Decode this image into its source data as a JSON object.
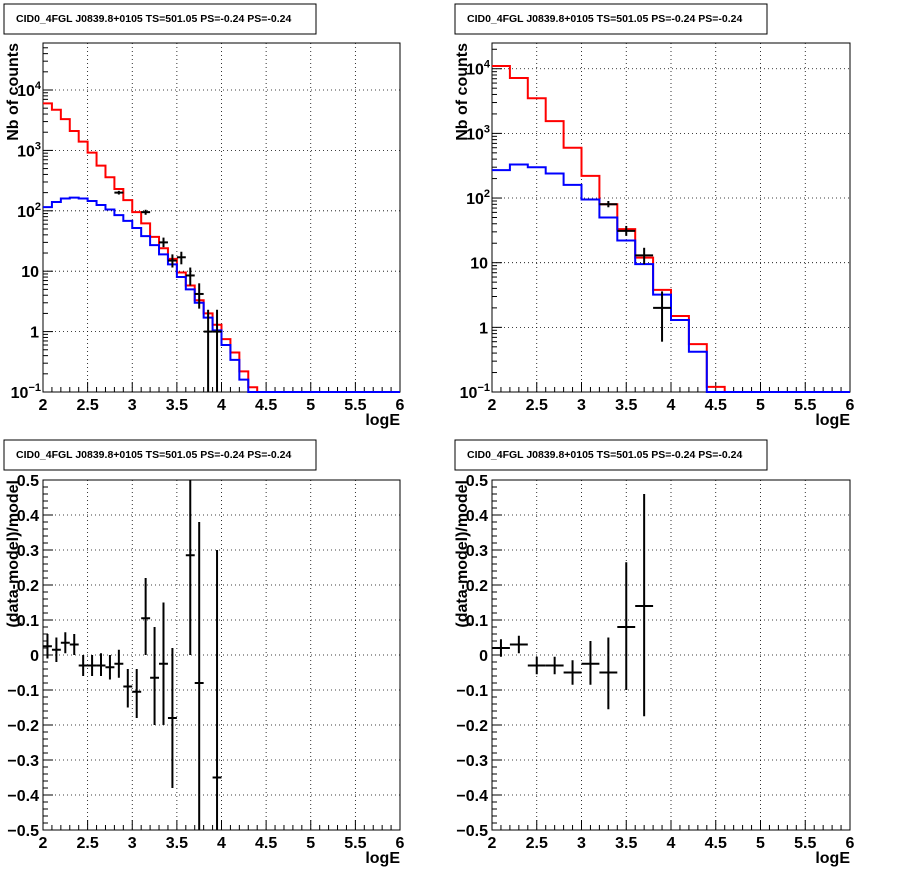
{
  "colors": {
    "data": "#000000",
    "total_model": "#ff0000",
    "background_model": "#0000ff",
    "grid": "#000000"
  },
  "chart_data": [
    {
      "type": "line",
      "title": "CID0_4FGL J0839.8+0105 TS=501.05 PS=-0.24 PS=-0.24",
      "xlabel": "logE",
      "ylabel": "Nb of counts",
      "xlim": [
        2,
        6
      ],
      "ylim": [
        0.1,
        60000
      ],
      "yscale": "log",
      "grid": true,
      "x_ticks": [
        2,
        2.5,
        3,
        3.5,
        4,
        4.5,
        5,
        5.5,
        6
      ],
      "x_tick_labels": [
        "2",
        "2.5",
        "3",
        "3.5",
        "4",
        "4.5",
        "5",
        "5.5",
        "6"
      ],
      "y_ticks": [
        0.1,
        1,
        10,
        100,
        1000,
        10000
      ],
      "y_tick_labels": [
        "10^-1",
        "1",
        "10",
        "10^2",
        "10^3",
        "10^4"
      ],
      "series": [
        {
          "style": "step",
          "color": "red",
          "bins": [
            2,
            2.1,
            2.2,
            2.3,
            2.4,
            2.5,
            2.6,
            2.7,
            2.8,
            2.9,
            3.0,
            3.1,
            3.2,
            3.3,
            3.4,
            3.5,
            3.6,
            3.7,
            3.8,
            3.9,
            4.0,
            4.1,
            4.2,
            4.3,
            4.4,
            4.5,
            4.6,
            4.7,
            4.8,
            4.9,
            5.0,
            5.1,
            5.2,
            5.3,
            5.4,
            5.5,
            5.6,
            5.7,
            5.8,
            5.9,
            6.0
          ],
          "values": [
            6000,
            4700,
            3300,
            2100,
            1400,
            920,
            560,
            360,
            230,
            150,
            95,
            62,
            37,
            24,
            16,
            9.5,
            5.8,
            3.3,
            2.0,
            1.3,
            0.75,
            0.45,
            0.22,
            0.12,
            0.1,
            0.1,
            0.1,
            0.1,
            0.1,
            0.1,
            0.1,
            0.1,
            0.1,
            0.1,
            0.1,
            0.1,
            0.1,
            0.1,
            0.1,
            0.1
          ]
        },
        {
          "style": "step",
          "color": "blue",
          "bins": [
            2,
            2.1,
            2.2,
            2.3,
            2.4,
            2.5,
            2.6,
            2.7,
            2.8,
            2.9,
            3.0,
            3.1,
            3.2,
            3.3,
            3.4,
            3.5,
            3.6,
            3.7,
            3.8,
            3.9,
            4.0,
            4.1,
            4.2,
            4.3,
            4.4,
            4.5,
            4.6,
            4.7,
            4.8,
            4.9,
            5.0,
            5.1,
            5.2,
            5.3,
            5.4,
            5.5,
            5.6,
            5.7,
            5.8,
            5.9,
            6.0
          ],
          "values": [
            115,
            140,
            160,
            165,
            160,
            145,
            125,
            105,
            85,
            68,
            52,
            38,
            27,
            19,
            13,
            8,
            5,
            3,
            1.7,
            1.05,
            0.6,
            0.34,
            0.16,
            0.1,
            0.1,
            0.1,
            0.1,
            0.1,
            0.1,
            0.1,
            0.1,
            0.1,
            0.1,
            0.1,
            0.1,
            0.1,
            0.1,
            0.1,
            0.1,
            0.1
          ]
        },
        {
          "style": "errorbar",
          "color": "black",
          "points": [
            {
              "x": 2.85,
              "y": 200,
              "xerr": 0.05,
              "ylo": 186,
              "yhi": 214
            },
            {
              "x": 3.15,
              "y": 95,
              "xerr": 0.05,
              "ylo": 86,
              "yhi": 104
            },
            {
              "x": 3.35,
              "y": 30,
              "xerr": 0.05,
              "ylo": 25,
              "yhi": 36
            },
            {
              "x": 3.45,
              "y": 15,
              "xerr": 0.05,
              "ylo": 11.5,
              "yhi": 19
            },
            {
              "x": 3.55,
              "y": 17,
              "xerr": 0.05,
              "ylo": 13,
              "yhi": 21
            },
            {
              "x": 3.65,
              "y": 8.5,
              "xerr": 0.05,
              "ylo": 5.8,
              "yhi": 11.5
            },
            {
              "x": 3.75,
              "y": 4.2,
              "xerr": 0.05,
              "ylo": 2.4,
              "yhi": 6.3
            },
            {
              "x": 3.85,
              "y": 1,
              "xerr": 0.05,
              "ylo": 0.1,
              "yhi": 2.3
            },
            {
              "x": 3.95,
              "y": 1,
              "xerr": 0.05,
              "ylo": 0.1,
              "yhi": 2.3
            }
          ]
        }
      ]
    },
    {
      "type": "line",
      "title": "CID0_4FGL J0839.8+0105 TS=501.05 PS=-0.24 PS=-0.24",
      "xlabel": "logE",
      "ylabel": "Nb of counts",
      "xlim": [
        2,
        6
      ],
      "ylim": [
        0.1,
        25000
      ],
      "yscale": "log",
      "grid": true,
      "x_ticks": [
        2,
        2.5,
        3,
        3.5,
        4,
        4.5,
        5,
        5.5,
        6
      ],
      "x_tick_labels": [
        "2",
        "2.5",
        "3",
        "3.5",
        "4",
        "4.5",
        "5",
        "5.5",
        "6"
      ],
      "y_ticks": [
        0.1,
        1,
        10,
        100,
        1000,
        10000
      ],
      "y_tick_labels": [
        "10^-1",
        "1",
        "10",
        "10^2",
        "10^3",
        "10^4"
      ],
      "series": [
        {
          "style": "step",
          "color": "red",
          "bins": [
            2,
            2.2,
            2.4,
            2.6,
            2.8,
            3.0,
            3.2,
            3.4,
            3.6,
            3.8,
            4.0,
            4.2,
            4.4,
            4.6,
            4.8,
            5.0,
            5.2,
            5.4,
            5.6,
            5.8,
            6.0
          ],
          "values": [
            11000,
            7200,
            3500,
            1550,
            600,
            220,
            80,
            33,
            12,
            3.8,
            1.5,
            0.55,
            0.12,
            0.1,
            0.1,
            0.1,
            0.1,
            0.1,
            0.1,
            0.1
          ]
        },
        {
          "style": "step",
          "color": "blue",
          "bins": [
            2,
            2.2,
            2.4,
            2.6,
            2.8,
            3.0,
            3.2,
            3.4,
            3.6,
            3.8,
            4.0,
            4.2,
            4.4,
            4.6,
            4.8,
            5.0,
            5.2,
            5.4,
            5.6,
            5.8,
            6.0
          ],
          "values": [
            270,
            330,
            300,
            240,
            160,
            95,
            50,
            22,
            9.5,
            3.2,
            1.3,
            0.42,
            0.1,
            0.1,
            0.1,
            0.1,
            0.1,
            0.1,
            0.1,
            0.1
          ]
        },
        {
          "style": "errorbar",
          "color": "black",
          "points": [
            {
              "x": 3.3,
              "y": 80,
              "xerr": 0.1,
              "ylo": 72,
              "yhi": 90
            },
            {
              "x": 3.5,
              "y": 31,
              "xerr": 0.1,
              "ylo": 26,
              "yhi": 37
            },
            {
              "x": 3.7,
              "y": 13,
              "xerr": 0.1,
              "ylo": 9.5,
              "yhi": 17
            },
            {
              "x": 3.9,
              "y": 2,
              "xerr": 0.1,
              "ylo": 0.6,
              "yhi": 3.6
            }
          ]
        }
      ]
    },
    {
      "type": "scatter",
      "title": "CID0_4FGL J0839.8+0105 TS=501.05 PS=-0.24 PS=-0.24",
      "xlabel": "logE",
      "ylabel": "(data-model)/model",
      "xlim": [
        2,
        6
      ],
      "ylim": [
        -0.5,
        0.5
      ],
      "grid": true,
      "x_ticks": [
        2,
        2.5,
        3,
        3.5,
        4,
        4.5,
        5,
        5.5,
        6
      ],
      "x_tick_labels": [
        "2",
        "2.5",
        "3",
        "3.5",
        "4",
        "4.5",
        "5",
        "5.5",
        "6"
      ],
      "y_ticks": [
        -0.5,
        -0.4,
        -0.3,
        -0.2,
        -0.1,
        0,
        0.1,
        0.2,
        0.3,
        0.4,
        0.5
      ],
      "y_tick_labels": [
        "−0.5",
        "−0.4",
        "−0.3",
        "−0.2",
        "−0.1",
        "0",
        "0.1",
        "0.2",
        "0.3",
        "0.4",
        "0.5"
      ],
      "series": [
        {
          "style": "errorbar",
          "color": "black",
          "points": [
            {
              "x": 2.05,
              "y": 0.025,
              "xerr": 0.05,
              "ylo": -0.01,
              "yhi": 0.06
            },
            {
              "x": 2.15,
              "y": 0.015,
              "xerr": 0.05,
              "ylo": -0.02,
              "yhi": 0.05
            },
            {
              "x": 2.25,
              "y": 0.035,
              "xerr": 0.05,
              "ylo": 0.005,
              "yhi": 0.065
            },
            {
              "x": 2.35,
              "y": 0.03,
              "xerr": 0.05,
              "ylo": 0.0,
              "yhi": 0.06
            },
            {
              "x": 2.45,
              "y": -0.03,
              "xerr": 0.05,
              "ylo": -0.06,
              "yhi": 0.0
            },
            {
              "x": 2.55,
              "y": -0.03,
              "xerr": 0.05,
              "ylo": -0.06,
              "yhi": 0.0
            },
            {
              "x": 2.65,
              "y": -0.03,
              "xerr": 0.05,
              "ylo": -0.06,
              "yhi": 0.005
            },
            {
              "x": 2.75,
              "y": -0.035,
              "xerr": 0.05,
              "ylo": -0.07,
              "yhi": 0.0
            },
            {
              "x": 2.85,
              "y": -0.025,
              "xerr": 0.05,
              "ylo": -0.065,
              "yhi": 0.015
            },
            {
              "x": 2.95,
              "y": -0.09,
              "xerr": 0.05,
              "ylo": -0.15,
              "yhi": -0.04
            },
            {
              "x": 3.05,
              "y": -0.105,
              "xerr": 0.05,
              "ylo": -0.18,
              "yhi": -0.04
            },
            {
              "x": 3.15,
              "y": 0.105,
              "xerr": 0.05,
              "ylo": 0.0,
              "yhi": 0.22
            },
            {
              "x": 3.25,
              "y": -0.065,
              "xerr": 0.05,
              "ylo": -0.2,
              "yhi": 0.08
            },
            {
              "x": 3.35,
              "y": -0.025,
              "xerr": 0.05,
              "ylo": -0.2,
              "yhi": 0.15
            },
            {
              "x": 3.45,
              "y": -0.18,
              "xerr": 0.05,
              "ylo": -0.38,
              "yhi": 0.02
            },
            {
              "x": 3.65,
              "y": 0.285,
              "xerr": 0.05,
              "ylo": 0.0,
              "yhi": 0.5
            },
            {
              "x": 3.75,
              "y": -0.08,
              "xerr": 0.05,
              "ylo": -0.5,
              "yhi": 0.38
            },
            {
              "x": 3.95,
              "y": -0.35,
              "xerr": 0.05,
              "ylo": -0.5,
              "yhi": 0.3
            }
          ]
        }
      ]
    },
    {
      "type": "scatter",
      "title": "CID0_4FGL J0839.8+0105 TS=501.05 PS=-0.24 PS=-0.24",
      "xlabel": "logE",
      "ylabel": "(data-model)/model",
      "xlim": [
        2,
        6
      ],
      "ylim": [
        -0.5,
        0.5
      ],
      "grid": true,
      "x_ticks": [
        2,
        2.5,
        3,
        3.5,
        4,
        4.5,
        5,
        5.5,
        6
      ],
      "x_tick_labels": [
        "2",
        "2.5",
        "3",
        "3.5",
        "4",
        "4.5",
        "5",
        "5.5",
        "6"
      ],
      "y_ticks": [
        -0.5,
        -0.4,
        -0.3,
        -0.2,
        -0.1,
        0,
        0.1,
        0.2,
        0.3,
        0.4,
        0.5
      ],
      "y_tick_labels": [
        "−0.5",
        "−0.4",
        "−0.3",
        "−0.2",
        "−0.1",
        "0",
        "0.1",
        "0.2",
        "0.3",
        "0.4",
        "0.5"
      ],
      "series": [
        {
          "style": "errorbar",
          "color": "black",
          "points": [
            {
              "x": 2.1,
              "y": 0.02,
              "xerr": 0.1,
              "ylo": -0.005,
              "yhi": 0.045
            },
            {
              "x": 2.3,
              "y": 0.03,
              "xerr": 0.1,
              "ylo": 0.005,
              "yhi": 0.055
            },
            {
              "x": 2.5,
              "y": -0.03,
              "xerr": 0.1,
              "ylo": -0.055,
              "yhi": -0.005
            },
            {
              "x": 2.7,
              "y": -0.03,
              "xerr": 0.1,
              "ylo": -0.055,
              "yhi": -0.005
            },
            {
              "x": 2.9,
              "y": -0.05,
              "xerr": 0.1,
              "ylo": -0.085,
              "yhi": -0.015
            },
            {
              "x": 3.1,
              "y": -0.025,
              "xerr": 0.1,
              "ylo": -0.085,
              "yhi": 0.04
            },
            {
              "x": 3.3,
              "y": -0.05,
              "xerr": 0.1,
              "ylo": -0.155,
              "yhi": 0.05
            },
            {
              "x": 3.5,
              "y": 0.08,
              "xerr": 0.1,
              "ylo": -0.1,
              "yhi": 0.265
            },
            {
              "x": 3.7,
              "y": 0.14,
              "xerr": 0.1,
              "ylo": -0.175,
              "yhi": 0.46
            }
          ]
        }
      ]
    }
  ]
}
